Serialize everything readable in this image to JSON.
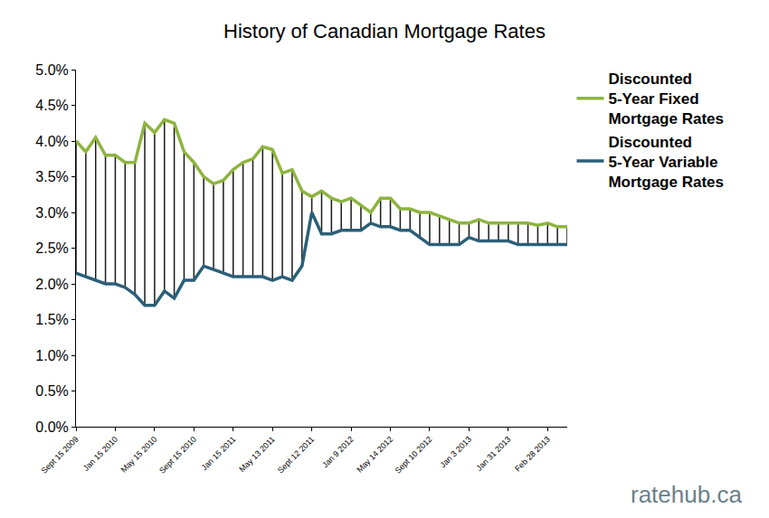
{
  "chart_data": {
    "type": "line",
    "title": "History of Canadian Mortgage Rates",
    "categories": [
      "Sept 15 2009",
      null,
      null,
      null,
      "Jan 15 2010",
      null,
      null,
      null,
      "May 15 2010",
      null,
      null,
      null,
      "Sept 15 2010",
      null,
      null,
      null,
      "Jan 15 2011",
      null,
      null,
      null,
      "May 13 2011",
      null,
      null,
      null,
      "Sept 12 2011",
      null,
      null,
      null,
      "Jan 9 2012",
      null,
      null,
      null,
      "May 14 2012",
      null,
      null,
      null,
      "Sept 10 2012",
      null,
      null,
      null,
      "Jan 3 2013",
      null,
      null,
      null,
      "Jan 31 2013",
      null,
      null,
      null,
      "Feb 28 2013",
      null,
      null
    ],
    "series": [
      {
        "name": "Discounted 5-Year Fixed Mortgage Rates",
        "color": "#8db43e",
        "values": [
          4.0,
          3.85,
          4.05,
          3.8,
          3.8,
          3.7,
          3.7,
          4.25,
          4.12,
          4.3,
          4.25,
          3.85,
          3.7,
          3.5,
          3.4,
          3.45,
          3.6,
          3.7,
          3.75,
          3.92,
          3.88,
          3.55,
          3.6,
          3.3,
          3.22,
          3.3,
          3.2,
          3.15,
          3.2,
          3.1,
          3.0,
          3.2,
          3.2,
          3.05,
          3.05,
          3.0,
          3.0,
          2.95,
          2.9,
          2.85,
          2.85,
          2.9,
          2.85,
          2.85,
          2.85,
          2.85,
          2.85,
          2.82,
          2.85,
          2.8,
          2.8
        ]
      },
      {
        "name": "Discounted 5-Year Variable Mortgage Rates",
        "color": "#2b5f78",
        "values": [
          2.15,
          2.1,
          2.05,
          2.0,
          2.0,
          1.95,
          1.85,
          1.7,
          1.7,
          1.9,
          1.8,
          2.05,
          2.05,
          2.25,
          2.2,
          2.15,
          2.1,
          2.1,
          2.1,
          2.1,
          2.05,
          2.1,
          2.05,
          2.25,
          3.0,
          2.7,
          2.7,
          2.75,
          2.75,
          2.75,
          2.85,
          2.8,
          2.8,
          2.75,
          2.75,
          2.65,
          2.55,
          2.55,
          2.55,
          2.55,
          2.65,
          2.6,
          2.6,
          2.6,
          2.6,
          2.55,
          2.55,
          2.55,
          2.55,
          2.55,
          2.55
        ]
      }
    ],
    "ylim": [
      0,
      5
    ],
    "yticks": [
      {
        "value": 0,
        "label": "0.0%"
      },
      {
        "value": 0.5,
        "label": "0.5%"
      },
      {
        "value": 1,
        "label": "1.0%"
      },
      {
        "value": 1.5,
        "label": "1.5%"
      },
      {
        "value": 2,
        "label": "2.0%"
      },
      {
        "value": 2.5,
        "label": "2.5%"
      },
      {
        "value": 3,
        "label": "3.0%"
      },
      {
        "value": 3.5,
        "label": "3.5%"
      },
      {
        "value": 4,
        "label": "4.0%"
      },
      {
        "value": 4.5,
        "label": "4.5%"
      },
      {
        "value": 5,
        "label": "5.0%"
      }
    ],
    "grid": false,
    "legend": "right",
    "annotations": [
      {
        "text": "ratehub.ca"
      }
    ]
  }
}
